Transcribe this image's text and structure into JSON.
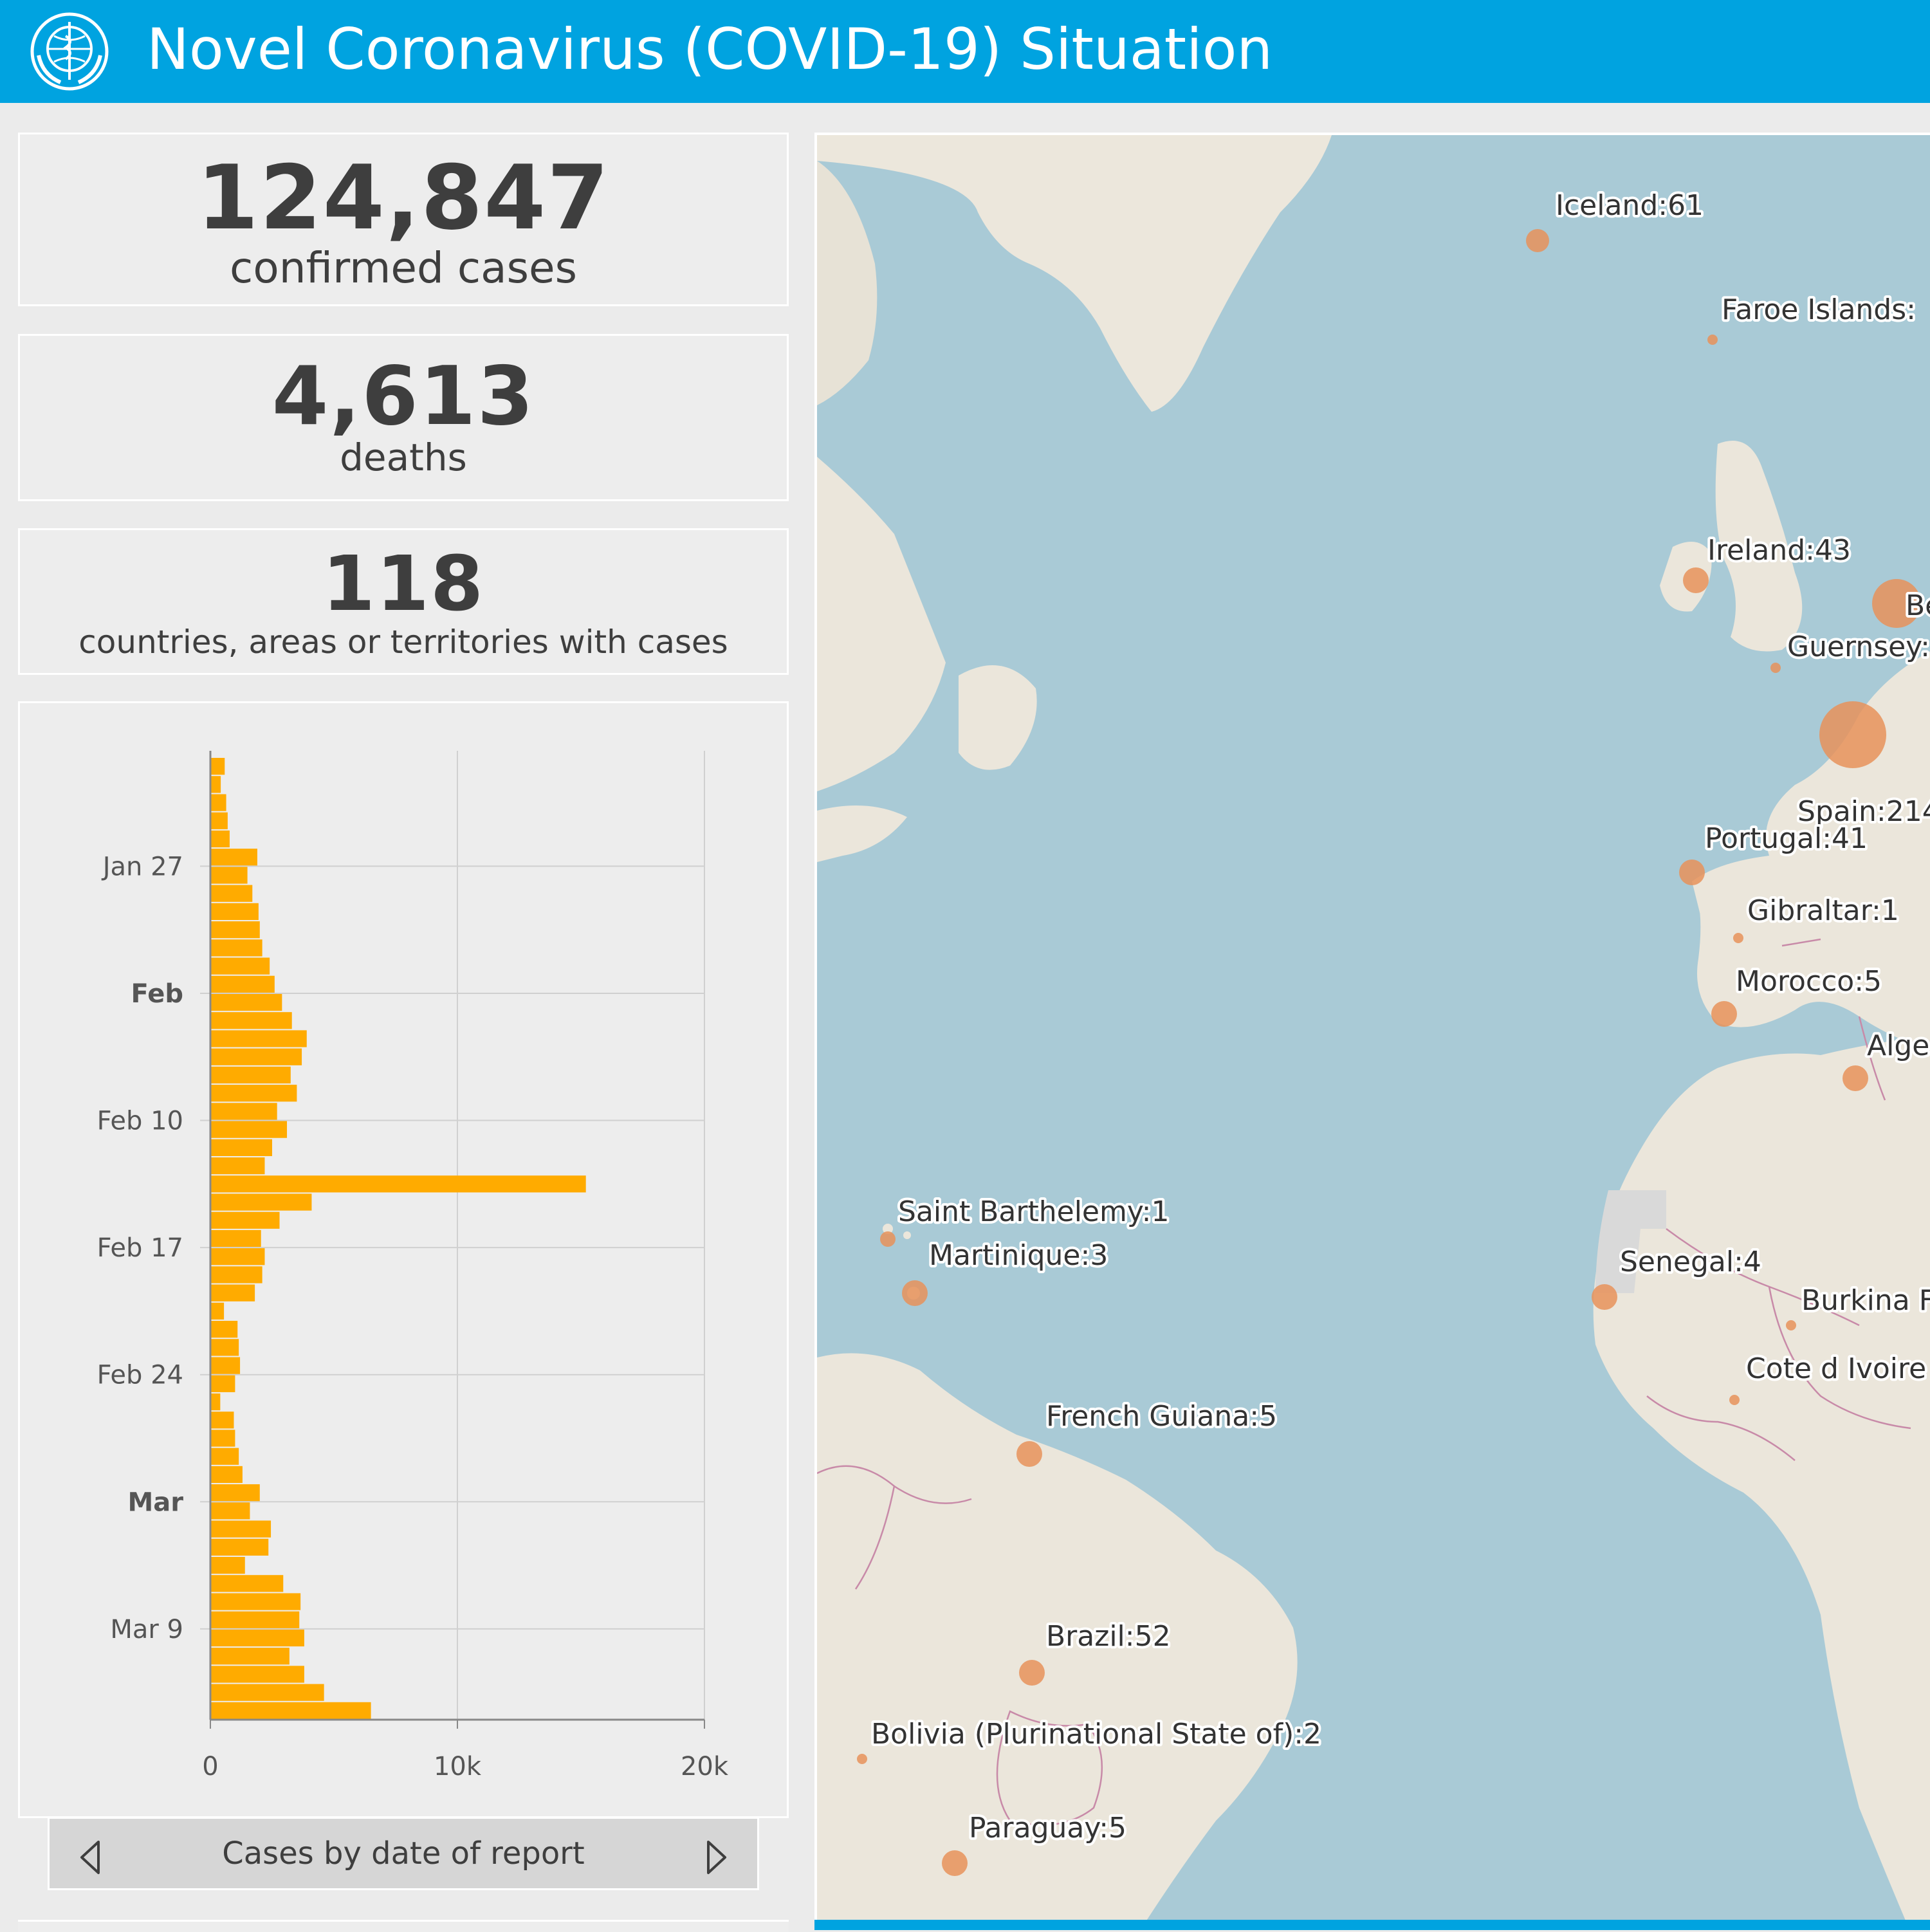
{
  "header": {
    "title": "Novel Coronavirus (COVID-19) Situation",
    "logo_icon": "who-emblem-icon"
  },
  "stats": {
    "confirmed": {
      "value": "124,847",
      "label": "confirmed cases"
    },
    "deaths": {
      "value": "4,613",
      "label": "deaths"
    },
    "countries": {
      "value": "118",
      "label": "countries, areas or territories with cases"
    }
  },
  "chart_footer": {
    "label": "Cases by date of report",
    "prev_icon": "chevron-left-icon",
    "next_icon": "chevron-right-icon"
  },
  "chart_data": {
    "type": "bar",
    "orientation": "horizontal",
    "title": "Cases by date of report",
    "xlim": [
      0,
      20000
    ],
    "x_ticks": [
      "0",
      "10k",
      "20k"
    ],
    "y_ticks": [
      {
        "label": "Jan 27",
        "bold": false
      },
      {
        "label": "Feb",
        "bold": true
      },
      {
        "label": "Feb 10",
        "bold": false
      },
      {
        "label": "Feb 17",
        "bold": false
      },
      {
        "label": "Feb 24",
        "bold": false
      },
      {
        "label": "Mar",
        "bold": true
      },
      {
        "label": "Mar 9",
        "bold": false
      }
    ],
    "first_date": "Jan 21",
    "values": [
      580,
      420,
      640,
      700,
      780,
      1900,
      1500,
      1700,
      1950,
      2000,
      2100,
      2400,
      2600,
      2900,
      3300,
      3900,
      3700,
      3250,
      3500,
      2700,
      3100,
      2500,
      2200,
      15200,
      4100,
      2800,
      2050,
      2200,
      2100,
      1800,
      550,
      1100,
      1150,
      1200,
      1000,
      400,
      950,
      1000,
      1150,
      1300,
      2000,
      1600,
      2450,
      2350,
      1400,
      2950,
      3650,
      3600,
      3800,
      3200,
      3800,
      4600,
      6500
    ],
    "bar_color": "#ffab00",
    "grid": true
  },
  "map": {
    "bubble_color": "#e8925a",
    "labels": [
      {
        "text": "Iceland:61"
      },
      {
        "text": "Faroe Islands:"
      },
      {
        "text": "Ireland:43"
      },
      {
        "text": "Be"
      },
      {
        "text": "Guernsey:"
      },
      {
        "text": "Spain:214"
      },
      {
        "text": "Portugal:41"
      },
      {
        "text": "Gibraltar:1"
      },
      {
        "text": "Morocco:5"
      },
      {
        "text": "Alge"
      },
      {
        "text": "Saint Barthelemy:1"
      },
      {
        "text": "Martinique:3"
      },
      {
        "text": "Senegal:4"
      },
      {
        "text": "Burkina F"
      },
      {
        "text": "Cote d Ivoire"
      },
      {
        "text": "French Guiana:5"
      },
      {
        "text": "Brazil:52"
      },
      {
        "text": "Bolivia (Plurinational State of):2"
      },
      {
        "text": "Paraguay:5"
      }
    ]
  }
}
